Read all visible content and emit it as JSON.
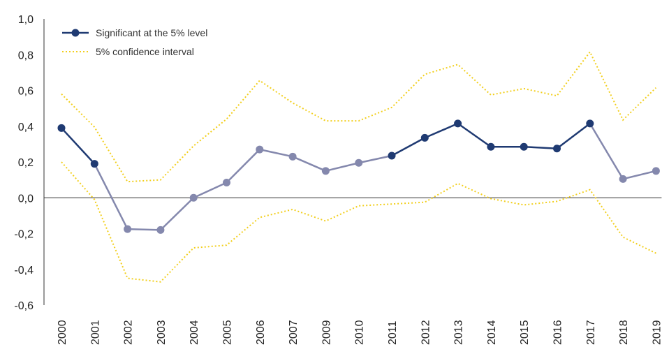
{
  "chart_data": {
    "type": "line",
    "title": "",
    "xlabel": "",
    "ylabel": "",
    "categories": [
      "2000",
      "2001",
      "2002",
      "2003",
      "2004",
      "2005",
      "2006",
      "2007",
      "2009",
      "2010",
      "2011",
      "2012",
      "2013",
      "2014",
      "2015",
      "2016",
      "2017",
      "2018",
      "2019"
    ],
    "y_ticks": [
      "1,0",
      "0,8",
      "0,6",
      "0,4",
      "0,2",
      "0,0",
      "-0,2",
      "-0,4",
      "-0,6"
    ],
    "ylim": [
      -0.6,
      1.0
    ],
    "estimate": {
      "values": [
        0.39,
        0.19,
        -0.175,
        -0.18,
        0.0,
        0.085,
        0.27,
        0.23,
        0.15,
        0.195,
        0.235,
        0.335,
        0.415,
        0.285,
        0.285,
        0.275,
        0.415,
        0.105,
        0.15
      ],
      "significant": [
        true,
        true,
        false,
        false,
        false,
        false,
        false,
        false,
        false,
        false,
        true,
        true,
        true,
        true,
        true,
        true,
        true,
        false,
        false
      ]
    },
    "ci_upper": [
      0.58,
      0.395,
      0.09,
      0.1,
      0.29,
      0.44,
      0.655,
      0.53,
      0.43,
      0.43,
      0.505,
      0.69,
      0.745,
      0.575,
      0.61,
      0.57,
      0.815,
      0.435,
      0.615
    ],
    "ci_lower": [
      0.2,
      -0.01,
      -0.45,
      -0.47,
      -0.28,
      -0.265,
      -0.11,
      -0.065,
      -0.13,
      -0.045,
      -0.035,
      -0.025,
      0.08,
      -0.005,
      -0.04,
      -0.02,
      0.045,
      -0.22,
      -0.31
    ],
    "legend": {
      "position": "top-left",
      "significant_label": "Significant at the 5% level",
      "ci_label": "5% confidence interval"
    },
    "colors": {
      "significant": "#1f3a72",
      "not_significant": "#8488ad",
      "ci": "#f2cf1d",
      "axis": "#333333"
    },
    "grid": false
  }
}
